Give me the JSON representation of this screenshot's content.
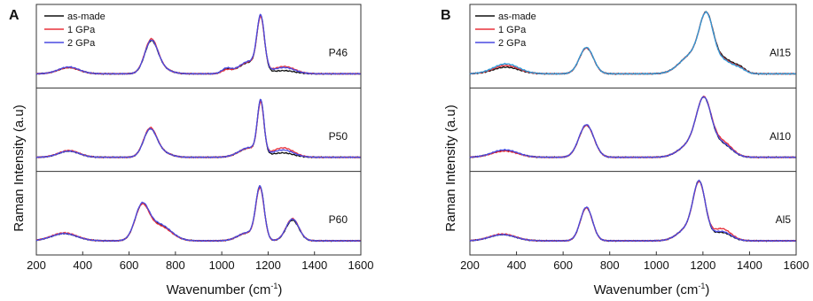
{
  "chart_data": [
    {
      "type": "line",
      "panel_letter": "A",
      "xlabel": "Wavenumber (cm",
      "xlabel_superscript": "-1",
      "xlabel_suffix": ")",
      "ylabel": "Raman Intensity (a.u)",
      "xlim": [
        200,
        1600
      ],
      "xticks": [
        200,
        400,
        600,
        800,
        1000,
        1200,
        1400,
        1600
      ],
      "legend": [
        "as-made",
        "1 GPa",
        "2 GPa"
      ],
      "subplots": [
        {
          "label": "P46",
          "peaks": [
            [
              340,
              0.12,
              45
            ],
            [
              695,
              0.58,
              28
            ],
            [
              735,
              0.1,
              40
            ],
            [
              1020,
              0.08,
              20
            ],
            [
              1168,
              1.0,
              16
            ],
            [
              1120,
              0.22,
              45
            ],
            [
              1270,
              0.1,
              45
            ]
          ],
          "series": [
            {
              "name": "as-made",
              "scale": [
                1,
                1,
                1,
                1,
                1,
                1,
                0.6
              ]
            },
            {
              "name": "1 GPa",
              "scale": [
                1,
                1.06,
                1,
                0.8,
                0.97,
                1.05,
                1.4
              ]
            },
            {
              "name": "2 GPa",
              "scale": [
                1.1,
                1.02,
                1,
                1.2,
                1.0,
                1.1,
                1.2
              ]
            }
          ]
        },
        {
          "label": "P50",
          "peaks": [
            [
              340,
              0.12,
              45
            ],
            [
              690,
              0.5,
              28
            ],
            [
              735,
              0.1,
              40
            ],
            [
              1168,
              1.0,
              14
            ],
            [
              1120,
              0.18,
              45
            ],
            [
              1265,
              0.14,
              45
            ]
          ],
          "series": [
            {
              "name": "as-made",
              "scale": [
                1,
                1,
                1,
                1,
                1,
                0.6
              ]
            },
            {
              "name": "1 GPa",
              "scale": [
                1.1,
                1.04,
                1,
                0.96,
                1,
                1.3
              ]
            },
            {
              "name": "2 GPa",
              "scale": [
                1.0,
                1.0,
                1,
                1.0,
                1.05,
                1.0
              ]
            }
          ]
        },
        {
          "label": "P60",
          "peaks": [
            [
              320,
              0.14,
              55
            ],
            [
              655,
              0.62,
              30
            ],
            [
              730,
              0.3,
              50
            ],
            [
              1165,
              1.0,
              18
            ],
            [
              1110,
              0.15,
              40
            ],
            [
              1305,
              0.42,
              28
            ]
          ],
          "series": [
            {
              "name": "as-made",
              "scale": [
                1,
                1,
                1,
                1,
                1,
                0.95
              ]
            },
            {
              "name": "1 GPa",
              "scale": [
                1.1,
                1.0,
                0.95,
                0.97,
                1,
                1.02
              ]
            },
            {
              "name": "2 GPa",
              "scale": [
                1.0,
                1.02,
                1.05,
                1.0,
                1.05,
                1.0
              ]
            }
          ]
        }
      ]
    },
    {
      "type": "line",
      "panel_letter": "B",
      "xlabel": "Wavenumber (cm",
      "xlabel_superscript": "-1",
      "xlabel_suffix": ")",
      "ylabel": "Raman Intensity (a.u)",
      "xlim": [
        200,
        1600
      ],
      "xticks": [
        200,
        400,
        600,
        800,
        1000,
        1200,
        1400,
        1600
      ],
      "legend": [
        "as-made",
        "1 GPa",
        "2 GPa"
      ],
      "subplots": [
        {
          "label": "Al15",
          "peaks": [
            [
              355,
              0.16,
              55
            ],
            [
              700,
              0.5,
              30
            ],
            [
              1215,
              1.0,
              30
            ],
            [
              1150,
              0.35,
              50
            ],
            [
              1290,
              0.25,
              40
            ],
            [
              1360,
              0.08,
              25
            ]
          ],
          "series": [
            {
              "name": "as-made",
              "scale": [
                0.8,
                1,
                1,
                1,
                1.1,
                1.2
              ]
            },
            {
              "name": "1 GPa",
              "scale": [
                1,
                1,
                1,
                1,
                1,
                1
              ]
            },
            {
              "name": "2 GPa",
              "scale": [
                1.2,
                1.02,
                1,
                1,
                0.95,
                0.9
              ]
            }
          ]
        },
        {
          "label": "Al10",
          "peaks": [
            [
              350,
              0.12,
              55
            ],
            [
              700,
              0.62,
              32
            ],
            [
              1205,
              1.0,
              32
            ],
            [
              1150,
              0.25,
              50
            ],
            [
              1285,
              0.24,
              40
            ]
          ],
          "series": [
            {
              "name": "as-made",
              "scale": [
                1.1,
                1,
                1,
                1,
                1
              ]
            },
            {
              "name": "1 GPa",
              "scale": [
                1,
                1,
                1,
                1,
                1.2
              ]
            },
            {
              "name": "2 GPa",
              "scale": [
                1.2,
                1.02,
                1,
                1,
                1.05
              ]
            }
          ]
        },
        {
          "label": "Al5",
          "peaks": [
            [
              340,
              0.12,
              55
            ],
            [
              700,
              0.64,
              26
            ],
            [
              1185,
              1.0,
              26
            ],
            [
              1140,
              0.25,
              45
            ],
            [
              1280,
              0.18,
              40
            ]
          ],
          "series": [
            {
              "name": "as-made",
              "scale": [
                1,
                1,
                1,
                1,
                0.9
              ]
            },
            {
              "name": "1 GPa",
              "scale": [
                1.1,
                1,
                0.98,
                1,
                1.3
              ]
            },
            {
              "name": "2 GPa",
              "scale": [
                1.0,
                1.02,
                1,
                1,
                1.0
              ]
            }
          ]
        }
      ]
    }
  ],
  "colors": {
    "as-made": "#111111",
    "1 GPa": "#e8303a",
    "2 GPa": "#4a4ae0",
    "b_top_2gpa": "#2f9ad8"
  }
}
